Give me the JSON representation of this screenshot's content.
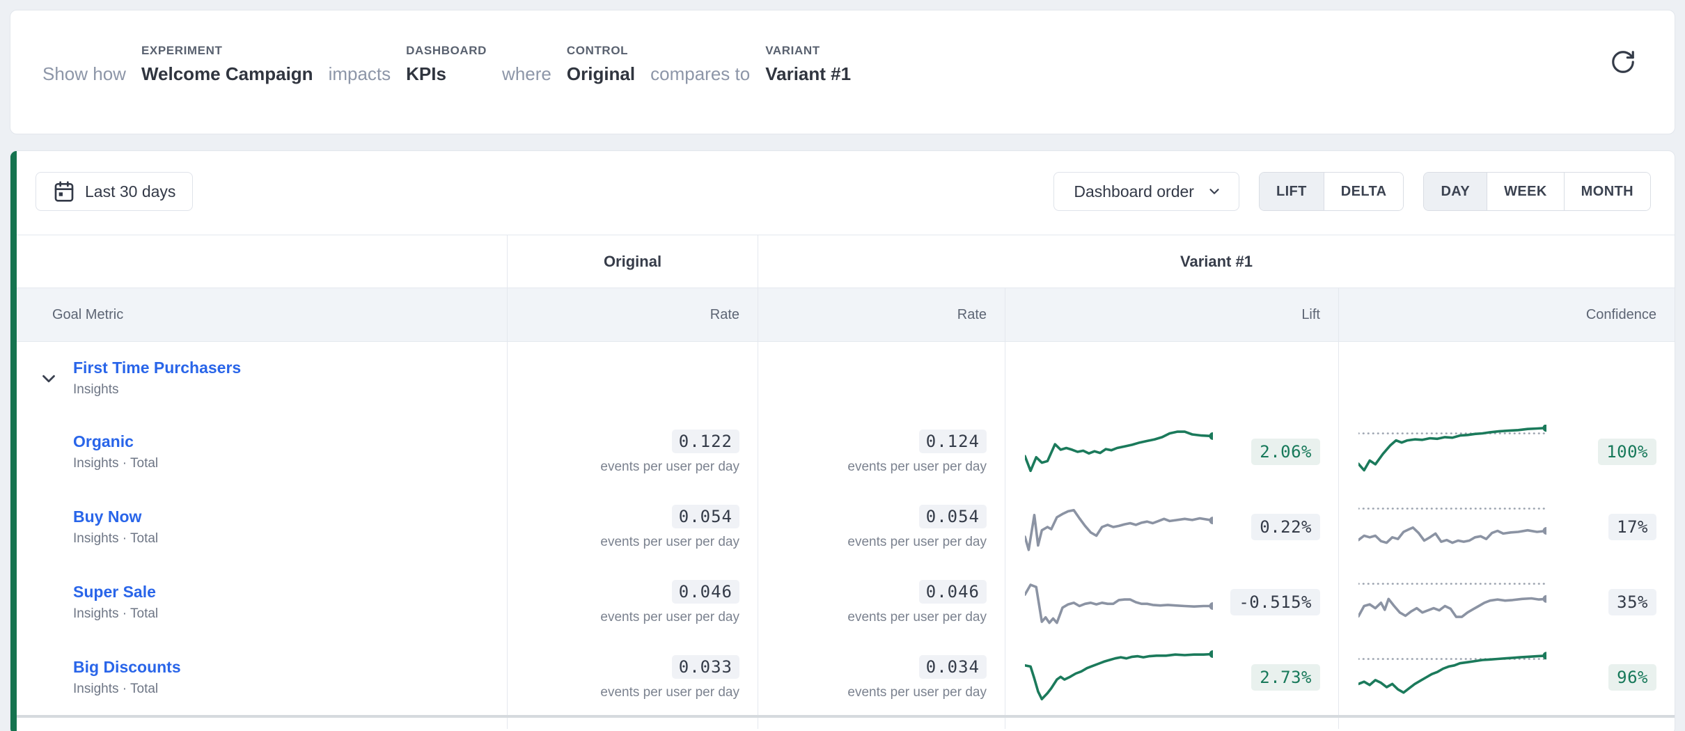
{
  "colors": {
    "positive_text": "#17795a",
    "positive_line": "#1b7a5b",
    "neutral_line": "#8b93a3",
    "threshold_line": "#9aa2ae",
    "positive_badge_bg": "#e9f1ee",
    "neutral_badge_bg": "#eff2f6",
    "link": "#2965e9",
    "row_marker": "#15734f",
    "page_bg": "#edf0f4"
  },
  "header_card": {
    "show_how": "Show how",
    "experiment_label": "EXPERIMENT",
    "experiment_value": "Welcome Campaign",
    "impacts": "impacts",
    "dashboard_label": "DASHBOARD",
    "dashboard_value": "KPIs",
    "where": "where",
    "control_label": "CONTROL",
    "control_value": "Original",
    "compares_to": "compares to",
    "variant_label": "VARIANT",
    "variant_value": "Variant #1",
    "refresh_icon": "refresh-icon"
  },
  "toolbar": {
    "date_range": "Last 30 days",
    "order_dropdown": "Dashboard order",
    "view_toggle": {
      "options": [
        "LIFT",
        "DELTA"
      ],
      "selected": "LIFT"
    },
    "granularity_toggle": {
      "options": [
        "DAY",
        "WEEK",
        "MONTH"
      ],
      "selected": "DAY"
    }
  },
  "table": {
    "headers": {
      "goal_metric": "Goal Metric",
      "original": "Original",
      "variant": "Variant #1",
      "rate": "Rate",
      "lift": "Lift",
      "confidence": "Confidence"
    },
    "group": {
      "name": "First Time Purchasers",
      "subtitle": "Insights"
    },
    "unit": "events per user per day",
    "rows": [
      {
        "name": "Organic",
        "subtitle": "Insights · Total",
        "control_rate": "0.122",
        "variant_rate": "0.124",
        "lift": "2.06%",
        "confidence": "100%",
        "positive": true,
        "spark_lift": [
          [
            0,
            58
          ],
          [
            3,
            85
          ],
          [
            6,
            60
          ],
          [
            9,
            70
          ],
          [
            12,
            67
          ],
          [
            16,
            36
          ],
          [
            19,
            46
          ],
          [
            22,
            43
          ],
          [
            25,
            46
          ],
          [
            28,
            50
          ],
          [
            31,
            48
          ],
          [
            34,
            53
          ],
          [
            37,
            49
          ],
          [
            40,
            52
          ],
          [
            43,
            45
          ],
          [
            46,
            47
          ],
          [
            49,
            43
          ],
          [
            53,
            40
          ],
          [
            57,
            37
          ],
          [
            61,
            33
          ],
          [
            65,
            30
          ],
          [
            69,
            27
          ],
          [
            73,
            23
          ],
          [
            77,
            16
          ],
          [
            81,
            13
          ],
          [
            85,
            13
          ],
          [
            89,
            18
          ],
          [
            94,
            20
          ],
          [
            100,
            21
          ]
        ],
        "spark_conf": [
          [
            0,
            72
          ],
          [
            3,
            84
          ],
          [
            6,
            66
          ],
          [
            9,
            73
          ],
          [
            13,
            54
          ],
          [
            17,
            38
          ],
          [
            20,
            29
          ],
          [
            23,
            33
          ],
          [
            26,
            29
          ],
          [
            30,
            27
          ],
          [
            34,
            28
          ],
          [
            38,
            25
          ],
          [
            42,
            26
          ],
          [
            46,
            23
          ],
          [
            50,
            24
          ],
          [
            54,
            20
          ],
          [
            58,
            19
          ],
          [
            62,
            17
          ],
          [
            66,
            16
          ],
          [
            70,
            14
          ],
          [
            75,
            12
          ],
          [
            80,
            11
          ],
          [
            85,
            10
          ],
          [
            90,
            8
          ],
          [
            95,
            7
          ],
          [
            100,
            6
          ]
        ]
      },
      {
        "name": "Buy Now",
        "subtitle": "Insights · Total",
        "control_rate": "0.054",
        "variant_rate": "0.054",
        "lift": "0.22%",
        "confidence": "17%",
        "positive": false,
        "spark_lift": [
          [
            0,
            68
          ],
          [
            2,
            92
          ],
          [
            5,
            28
          ],
          [
            7,
            84
          ],
          [
            9,
            56
          ],
          [
            12,
            50
          ],
          [
            14,
            54
          ],
          [
            17,
            32
          ],
          [
            20,
            26
          ],
          [
            23,
            21
          ],
          [
            26,
            19
          ],
          [
            29,
            34
          ],
          [
            32,
            48
          ],
          [
            35,
            60
          ],
          [
            38,
            66
          ],
          [
            41,
            50
          ],
          [
            44,
            46
          ],
          [
            47,
            50
          ],
          [
            50,
            48
          ],
          [
            53,
            45
          ],
          [
            56,
            43
          ],
          [
            59,
            46
          ],
          [
            62,
            42
          ],
          [
            65,
            40
          ],
          [
            68,
            43
          ],
          [
            71,
            39
          ],
          [
            74,
            35
          ],
          [
            77,
            39
          ],
          [
            81,
            37
          ],
          [
            85,
            35
          ],
          [
            89,
            37
          ],
          [
            93,
            34
          ],
          [
            100,
            38
          ]
        ],
        "spark_conf": [
          [
            0,
            74
          ],
          [
            3,
            66
          ],
          [
            6,
            69
          ],
          [
            9,
            66
          ],
          [
            12,
            76
          ],
          [
            15,
            79
          ],
          [
            18,
            69
          ],
          [
            21,
            72
          ],
          [
            24,
            59
          ],
          [
            27,
            54
          ],
          [
            29,
            51
          ],
          [
            32,
            61
          ],
          [
            35,
            75
          ],
          [
            38,
            69
          ],
          [
            41,
            62
          ],
          [
            44,
            77
          ],
          [
            47,
            74
          ],
          [
            50,
            79
          ],
          [
            53,
            75
          ],
          [
            56,
            77
          ],
          [
            59,
            75
          ],
          [
            62,
            69
          ],
          [
            65,
            67
          ],
          [
            68,
            72
          ],
          [
            71,
            61
          ],
          [
            74,
            57
          ],
          [
            77,
            62
          ],
          [
            81,
            60
          ],
          [
            85,
            59
          ],
          [
            90,
            56
          ],
          [
            95,
            59
          ],
          [
            100,
            57
          ]
        ]
      },
      {
        "name": "Super Sale",
        "subtitle": "Insights · Total",
        "control_rate": "0.046",
        "variant_rate": "0.046",
        "lift": "-0.515%",
        "confidence": "35%",
        "positive": false,
        "spark_lift": [
          [
            0,
            36
          ],
          [
            3,
            18
          ],
          [
            6,
            22
          ],
          [
            9,
            86
          ],
          [
            11,
            78
          ],
          [
            13,
            88
          ],
          [
            15,
            80
          ],
          [
            17,
            88
          ],
          [
            20,
            60
          ],
          [
            23,
            54
          ],
          [
            26,
            51
          ],
          [
            29,
            57
          ],
          [
            32,
            53
          ],
          [
            35,
            51
          ],
          [
            38,
            54
          ],
          [
            41,
            51
          ],
          [
            44,
            53
          ],
          [
            47,
            53
          ],
          [
            50,
            46
          ],
          [
            53,
            45
          ],
          [
            56,
            45
          ],
          [
            59,
            50
          ],
          [
            62,
            53
          ],
          [
            65,
            53
          ],
          [
            68,
            55
          ],
          [
            72,
            56
          ],
          [
            76,
            55
          ],
          [
            80,
            56
          ],
          [
            85,
            57
          ],
          [
            90,
            58
          ],
          [
            95,
            57
          ],
          [
            100,
            57
          ]
        ],
        "spark_conf": [
          [
            0,
            76
          ],
          [
            3,
            57
          ],
          [
            6,
            54
          ],
          [
            9,
            61
          ],
          [
            12,
            51
          ],
          [
            14,
            64
          ],
          [
            16,
            44
          ],
          [
            19,
            57
          ],
          [
            22,
            69
          ],
          [
            25,
            75
          ],
          [
            28,
            67
          ],
          [
            31,
            61
          ],
          [
            34,
            69
          ],
          [
            37,
            65
          ],
          [
            40,
            61
          ],
          [
            43,
            65
          ],
          [
            46,
            57
          ],
          [
            49,
            62
          ],
          [
            52,
            77
          ],
          [
            55,
            77
          ],
          [
            58,
            69
          ],
          [
            61,
            63
          ],
          [
            64,
            57
          ],
          [
            67,
            51
          ],
          [
            70,
            47
          ],
          [
            74,
            45
          ],
          [
            78,
            47
          ],
          [
            82,
            46
          ],
          [
            87,
            44
          ],
          [
            92,
            43
          ],
          [
            96,
            45
          ],
          [
            100,
            44
          ]
        ]
      },
      {
        "name": "Big Discounts",
        "subtitle": "Insights · Total",
        "control_rate": "0.033",
        "variant_rate": "0.034",
        "lift": "2.73%",
        "confidence": "96%",
        "positive": true,
        "spark_lift": [
          [
            0,
            28
          ],
          [
            3,
            30
          ],
          [
            5,
            52
          ],
          [
            7,
            76
          ],
          [
            9,
            90
          ],
          [
            12,
            79
          ],
          [
            14,
            70
          ],
          [
            17,
            54
          ],
          [
            19,
            49
          ],
          [
            21,
            54
          ],
          [
            24,
            49
          ],
          [
            27,
            43
          ],
          [
            30,
            39
          ],
          [
            33,
            33
          ],
          [
            36,
            29
          ],
          [
            39,
            25
          ],
          [
            42,
            21
          ],
          [
            45,
            18
          ],
          [
            48,
            15
          ],
          [
            51,
            13
          ],
          [
            54,
            15
          ],
          [
            57,
            12
          ],
          [
            60,
            11
          ],
          [
            63,
            13
          ],
          [
            66,
            11
          ],
          [
            70,
            10
          ],
          [
            75,
            10
          ],
          [
            80,
            8
          ],
          [
            85,
            9
          ],
          [
            90,
            8
          ],
          [
            95,
            8
          ],
          [
            100,
            7
          ]
        ],
        "spark_conf": [
          [
            0,
            62
          ],
          [
            3,
            58
          ],
          [
            6,
            64
          ],
          [
            9,
            55
          ],
          [
            12,
            60
          ],
          [
            15,
            68
          ],
          [
            18,
            62
          ],
          [
            21,
            72
          ],
          [
            24,
            78
          ],
          [
            27,
            70
          ],
          [
            30,
            62
          ],
          [
            33,
            56
          ],
          [
            36,
            50
          ],
          [
            39,
            44
          ],
          [
            42,
            40
          ],
          [
            45,
            34
          ],
          [
            48,
            30
          ],
          [
            51,
            28
          ],
          [
            54,
            24
          ],
          [
            58,
            22
          ],
          [
            62,
            20
          ],
          [
            66,
            18
          ],
          [
            70,
            17
          ],
          [
            74,
            16
          ],
          [
            78,
            15
          ],
          [
            82,
            14
          ],
          [
            86,
            13
          ],
          [
            90,
            12
          ],
          [
            95,
            11
          ],
          [
            100,
            10
          ]
        ]
      }
    ]
  }
}
